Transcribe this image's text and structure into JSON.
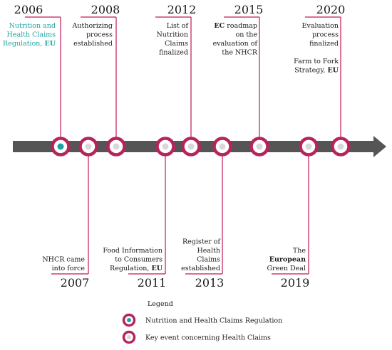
{
  "colors": {
    "line": "#c2185b",
    "ring": "#b5245c",
    "teal": "#1ba3a3",
    "grey_dot": "#d8d8d8",
    "arrow": "#555555"
  },
  "events_top": [
    {
      "year": "2006",
      "lines": [
        [
          "Nutrition and"
        ],
        [
          "Health Claims"
        ],
        [
          "Regulation, ",
          {
            "b": "EU"
          }
        ]
      ],
      "type": "nhcr"
    },
    {
      "year": "2008",
      "lines": [
        [
          "Authorizing"
        ],
        [
          "process"
        ],
        [
          "established"
        ]
      ],
      "type": "key"
    },
    {
      "year": "2012",
      "lines": [
        [
          "List of"
        ],
        [
          "Nutrition"
        ],
        [
          "Claims"
        ],
        [
          "finalized"
        ]
      ],
      "type": "key"
    },
    {
      "year": "2015",
      "lines": [
        [
          {
            "b": "EC"
          },
          " roadmap"
        ],
        [
          "on the"
        ],
        [
          "evaluation of"
        ],
        [
          "the NHCR"
        ]
      ],
      "type": "key"
    },
    {
      "year": "2020",
      "lines": [
        [
          "Evaluation"
        ],
        [
          "process"
        ],
        [
          "finalized"
        ],
        [
          ""
        ],
        [
          "Farm to Fork"
        ],
        [
          "Strategy, ",
          {
            "b": "EU"
          }
        ]
      ],
      "type": "key"
    }
  ],
  "events_bottom": [
    {
      "year": "2007",
      "lines": [
        [
          "NHCR came"
        ],
        [
          "into force"
        ]
      ],
      "type": "key"
    },
    {
      "year": "2011",
      "lines": [
        [
          "Food Information"
        ],
        [
          "to Consumers"
        ],
        [
          "Regulation, ",
          {
            "b": "EU"
          }
        ]
      ],
      "type": "key"
    },
    {
      "year": "2013",
      "lines": [
        [
          "Register of"
        ],
        [
          "Health"
        ],
        [
          "Claims"
        ],
        [
          "established"
        ]
      ],
      "type": "key"
    },
    {
      "year": "2019",
      "lines": [
        [
          "The"
        ],
        [
          {
            "b": "European"
          }
        ],
        [
          "Green Deal"
        ]
      ],
      "type": "key"
    }
  ],
  "extra_nodes": [
    {
      "type": "key"
    }
  ],
  "legend": {
    "title": "Legend",
    "items": [
      {
        "type": "nhcr",
        "label": "Nutrition and Health Claims Regulation"
      },
      {
        "type": "key",
        "label": "Key event concerning Health Claims"
      }
    ]
  }
}
